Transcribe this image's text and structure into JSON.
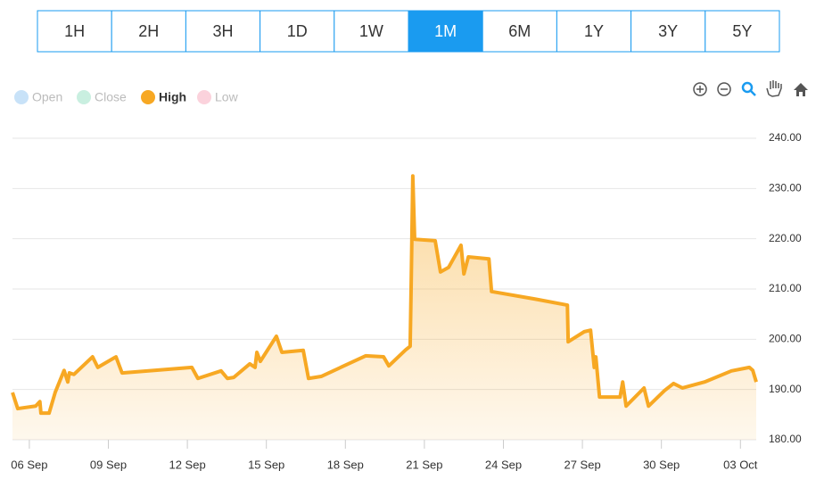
{
  "toolbar": {
    "buttons": [
      "1H",
      "2H",
      "3H",
      "1D",
      "1W",
      "1M",
      "6M",
      "1Y",
      "3Y",
      "5Y"
    ],
    "active": 5
  },
  "chart_data": {
    "type": "line",
    "legend": [
      {
        "name": "Open",
        "color": "#c8e2f8",
        "active": false
      },
      {
        "name": "Close",
        "color": "#c9efe0",
        "active": false
      },
      {
        "name": "High",
        "color": "#f7a823",
        "active": true
      },
      {
        "name": "Low",
        "color": "#fbd2dc",
        "active": false
      }
    ],
    "x": [
      5.36,
      5.56,
      6.24,
      6.4,
      6.44,
      6.75,
      6.98,
      7.32,
      7.46,
      7.52,
      7.69,
      8.4,
      8.6,
      9.29,
      9.52,
      12.17,
      12.4,
      13.28,
      13.52,
      13.76,
      14.37,
      14.57,
      14.64,
      14.77,
      15.38,
      15.59,
      16.4,
      16.6,
      17.08,
      18.77,
      19.45,
      19.65,
      20.29,
      20.46,
      20.5,
      20.56,
      20.63,
      21.41,
      21.61,
      21.92,
      22.39,
      22.5,
      22.67,
      23.45,
      23.55,
      25.2,
      26.43,
      26.46,
      27.07,
      27.31,
      27.45,
      27.51,
      27.65,
      28.43,
      28.53,
      28.66,
      29.34,
      29.51,
      30.12,
      30.46,
      30.8,
      31.64,
      32.66,
      33.34,
      33.47,
      33.6
    ],
    "series": [
      {
        "name": "High",
        "color": "#f7a823",
        "values": [
          189.4,
          186.2,
          186.7,
          187.6,
          185.3,
          185.3,
          189.4,
          193.8,
          191.5,
          193.3,
          193.0,
          196.5,
          194.4,
          196.5,
          193.3,
          194.4,
          192.2,
          193.7,
          192.2,
          192.4,
          195.1,
          194.4,
          197.4,
          195.6,
          200.6,
          197.4,
          197.8,
          192.2,
          192.6,
          196.7,
          196.5,
          194.7,
          197.9,
          198.6,
          211.4,
          232.5,
          219.9,
          219.6,
          213.4,
          214.3,
          218.7,
          213.0,
          216.4,
          216.0,
          209.5,
          208.0,
          206.8,
          199.5,
          201.5,
          201.8,
          194.4,
          196.5,
          188.5,
          188.5,
          191.5,
          186.7,
          190.3,
          186.7,
          189.8,
          191.2,
          190.3,
          191.5,
          193.7,
          194.4,
          193.8,
          191.5
        ]
      }
    ],
    "xlim": [
      5.36,
      33.6
    ],
    "xticks": [
      {
        "value": 6,
        "label": "06 Sep"
      },
      {
        "value": 9,
        "label": "09 Sep"
      },
      {
        "value": 12,
        "label": "12 Sep"
      },
      {
        "value": 15,
        "label": "15 Sep"
      },
      {
        "value": 18,
        "label": "18 Sep"
      },
      {
        "value": 21,
        "label": "21 Sep"
      },
      {
        "value": 24,
        "label": "24 Sep"
      },
      {
        "value": 27,
        "label": "27 Sep"
      },
      {
        "value": 30,
        "label": "30 Sep"
      },
      {
        "value": 33,
        "label": "03 Oct"
      }
    ],
    "ylim": [
      180,
      240
    ],
    "yticks": [
      {
        "value": 180,
        "label": "180.00"
      },
      {
        "value": 190,
        "label": "190.00"
      },
      {
        "value": 200,
        "label": "200.00"
      },
      {
        "value": 210,
        "label": "210.00"
      },
      {
        "value": 220,
        "label": "220.00"
      },
      {
        "value": 230,
        "label": "230.00"
      },
      {
        "value": 240,
        "label": "240.00"
      }
    ],
    "grid": true
  }
}
